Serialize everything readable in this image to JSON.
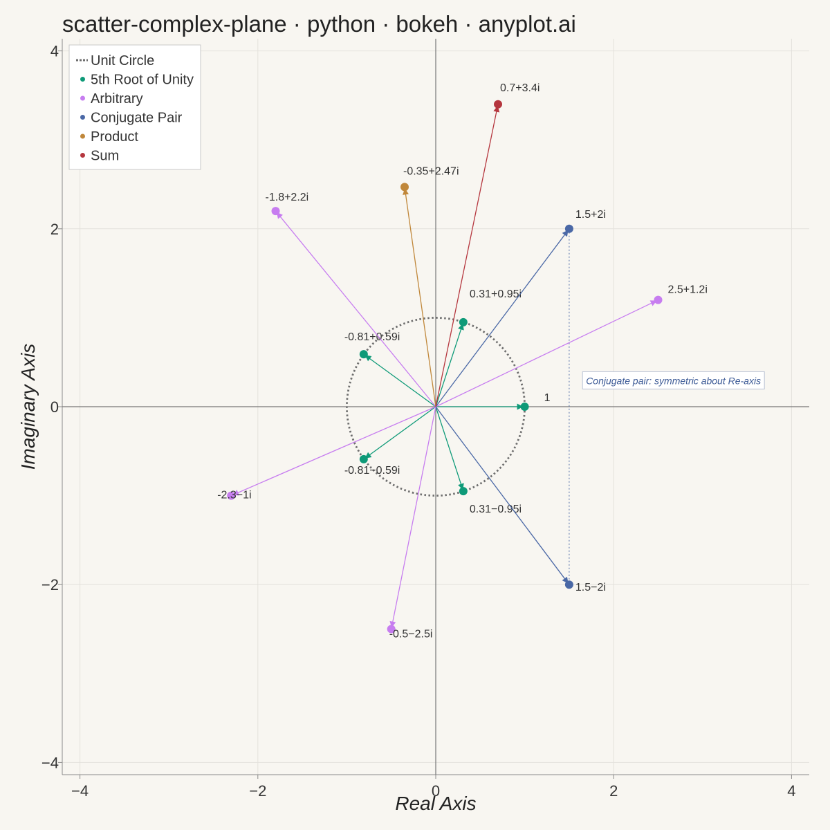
{
  "chart_data": {
    "type": "scatter",
    "title": "scatter-complex-plane · python · bokeh · anyplot.ai",
    "xlabel": "Real Axis",
    "ylabel": "Imaginary Axis",
    "xlim": [
      -4.2,
      4.2
    ],
    "ylim": [
      -4.2,
      4.2
    ],
    "x_ticks": [
      -4,
      -2,
      0,
      2,
      4
    ],
    "y_ticks": [
      -4,
      -2,
      0,
      2,
      4
    ],
    "tick_labels": [
      "−4",
      "−2",
      "0",
      "2",
      "4"
    ],
    "grid": true,
    "legend_position": "top-left",
    "unit_circle": {
      "label": "Unit Circle",
      "radius": 1,
      "color": "#6E6E6E"
    },
    "series": [
      {
        "name": "5th Root of Unity",
        "color": "#0E9A78",
        "points": [
          {
            "x": 1,
            "y": 0,
            "label": "1"
          },
          {
            "x": 0.31,
            "y": 0.95,
            "label": "0.31+0.95i"
          },
          {
            "x": -0.81,
            "y": 0.59,
            "label": "-0.81+0.59i"
          },
          {
            "x": -0.81,
            "y": -0.59,
            "label": "-0.81−0.59i"
          },
          {
            "x": 0.31,
            "y": -0.95,
            "label": "0.31−0.95i"
          }
        ]
      },
      {
        "name": "Arbitrary",
        "color": "#C77DF0",
        "points": [
          {
            "x": -1.8,
            "y": 2.2,
            "label": "-1.8+2.2i"
          },
          {
            "x": 2.5,
            "y": 1.2,
            "label": "2.5+1.2i"
          },
          {
            "x": -2.3,
            "y": -1,
            "label": "-2.3−1i"
          },
          {
            "x": -0.5,
            "y": -2.5,
            "label": "-0.5−2.5i"
          }
        ]
      },
      {
        "name": "Conjugate Pair",
        "color": "#4A68A6",
        "points": [
          {
            "x": 1.5,
            "y": 2,
            "label": "1.5+2i"
          },
          {
            "x": 1.5,
            "y": -2,
            "label": "1.5−2i"
          }
        ]
      },
      {
        "name": "Product",
        "color": "#C0873A",
        "points": [
          {
            "x": -0.35,
            "y": 2.47,
            "label": "-0.35+2.47i"
          }
        ]
      },
      {
        "name": "Sum",
        "color": "#B5363E",
        "points": [
          {
            "x": 0.7,
            "y": 3.4,
            "label": "0.7+3.4i"
          }
        ]
      }
    ],
    "annotation": {
      "text": "Conjugate pair: symmetric about Re-axis",
      "x": 1.65,
      "y": 0.3
    }
  }
}
